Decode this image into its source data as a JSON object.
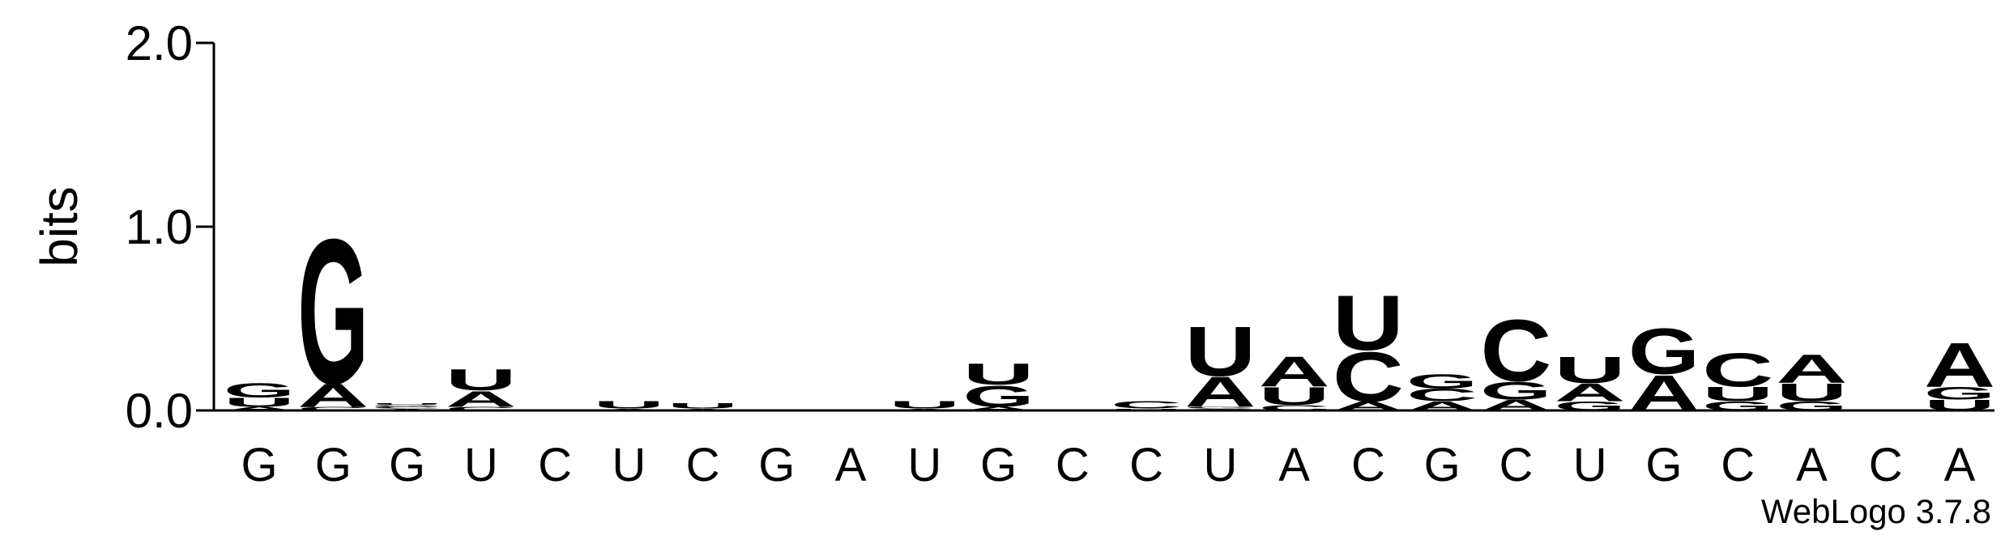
{
  "chart_data": {
    "type": "logo",
    "y_label": "bits",
    "footer": "WebLogo 3.7.8",
    "categories": [
      "G",
      "G",
      "G",
      "U",
      "C",
      "U",
      "C",
      "G",
      "A",
      "U",
      "G",
      "C",
      "C",
      "U",
      "A",
      "C",
      "G",
      "C",
      "U",
      "G",
      "C",
      "A",
      "C",
      "A"
    ],
    "ylim": [
      0,
      2
    ],
    "yticks": [
      {
        "value": 0,
        "label": "0.0"
      },
      {
        "value": 1,
        "label": "1.0"
      },
      {
        "value": 2,
        "label": "2.0"
      }
    ],
    "series": [
      {
        "name": "A",
        "color": "#ff8c00",
        "values": [
          0.02,
          0.13,
          0.01,
          0.09,
          0,
          0.01,
          0.01,
          0,
          0,
          0.01,
          0.02,
          0,
          0,
          0.17,
          0.17,
          0.05,
          0.05,
          0.06,
          0.1,
          0.2,
          0,
          0.16,
          0,
          0.25
        ]
      },
      {
        "name": "C",
        "color": "#0000ff",
        "values": [
          0,
          0.02,
          0.01,
          0.02,
          0,
          0,
          0,
          0,
          0,
          0,
          0,
          0,
          0.04,
          0.01,
          0.03,
          0.28,
          0.07,
          0.35,
          0,
          0,
          0.19,
          0,
          0,
          0
        ]
      },
      {
        "name": "G",
        "color": "#0000ff",
        "values": [
          0.08,
          0.82,
          0.01,
          0,
          0,
          0,
          0,
          0,
          0,
          0,
          0.12,
          0,
          0,
          0.01,
          0,
          0,
          0.08,
          0.1,
          0.05,
          0.26,
          0.05,
          0.05,
          0,
          0.07
        ]
      },
      {
        "name": "U",
        "color": "#ff8c00",
        "values": [
          0.05,
          0,
          0.01,
          0.12,
          0,
          0.04,
          0.03,
          0,
          0,
          0.04,
          0.12,
          0,
          0.01,
          0.28,
          0.1,
          0.31,
          0,
          0,
          0.15,
          0,
          0.08,
          0.1,
          0,
          0.06
        ]
      }
    ]
  }
}
